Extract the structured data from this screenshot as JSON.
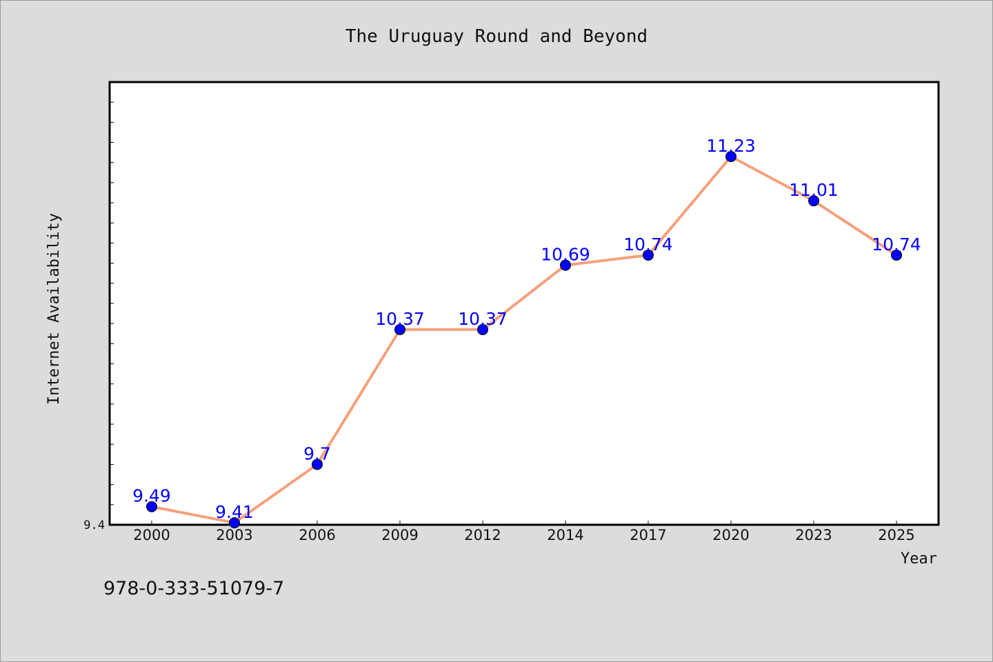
{
  "chart_data": {
    "type": "line",
    "title": "The Uruguay Round and Beyond",
    "xlabel": "Year",
    "ylabel": "Internet Availability",
    "categories": [
      "2000",
      "2003",
      "2006",
      "2009",
      "2012",
      "2014",
      "2017",
      "2020",
      "2023",
      "2025"
    ],
    "series": [
      {
        "values": [
          9.49,
          9.41,
          9.7,
          10.37,
          10.37,
          10.69,
          10.74,
          11.23,
          11.01,
          10.74
        ],
        "line_color": "#f5a07a",
        "marker_color": "#0000ff"
      }
    ],
    "data_labels": [
      "9.49",
      "9.41",
      "9.7",
      "10.37",
      "10.37",
      "10.69",
      "10.74",
      "11.23",
      "11.01",
      "10.74"
    ],
    "y_tick_labels": [
      "9.4"
    ],
    "ylim": [
      9.4,
      11.6
    ],
    "grid": false,
    "legend": "none",
    "background_color": "#dcdcdc",
    "plot_background_color": "#ffffff",
    "label_color": "#0000ff"
  },
  "footer": {
    "isbn": "978-0-333-51079-7"
  }
}
